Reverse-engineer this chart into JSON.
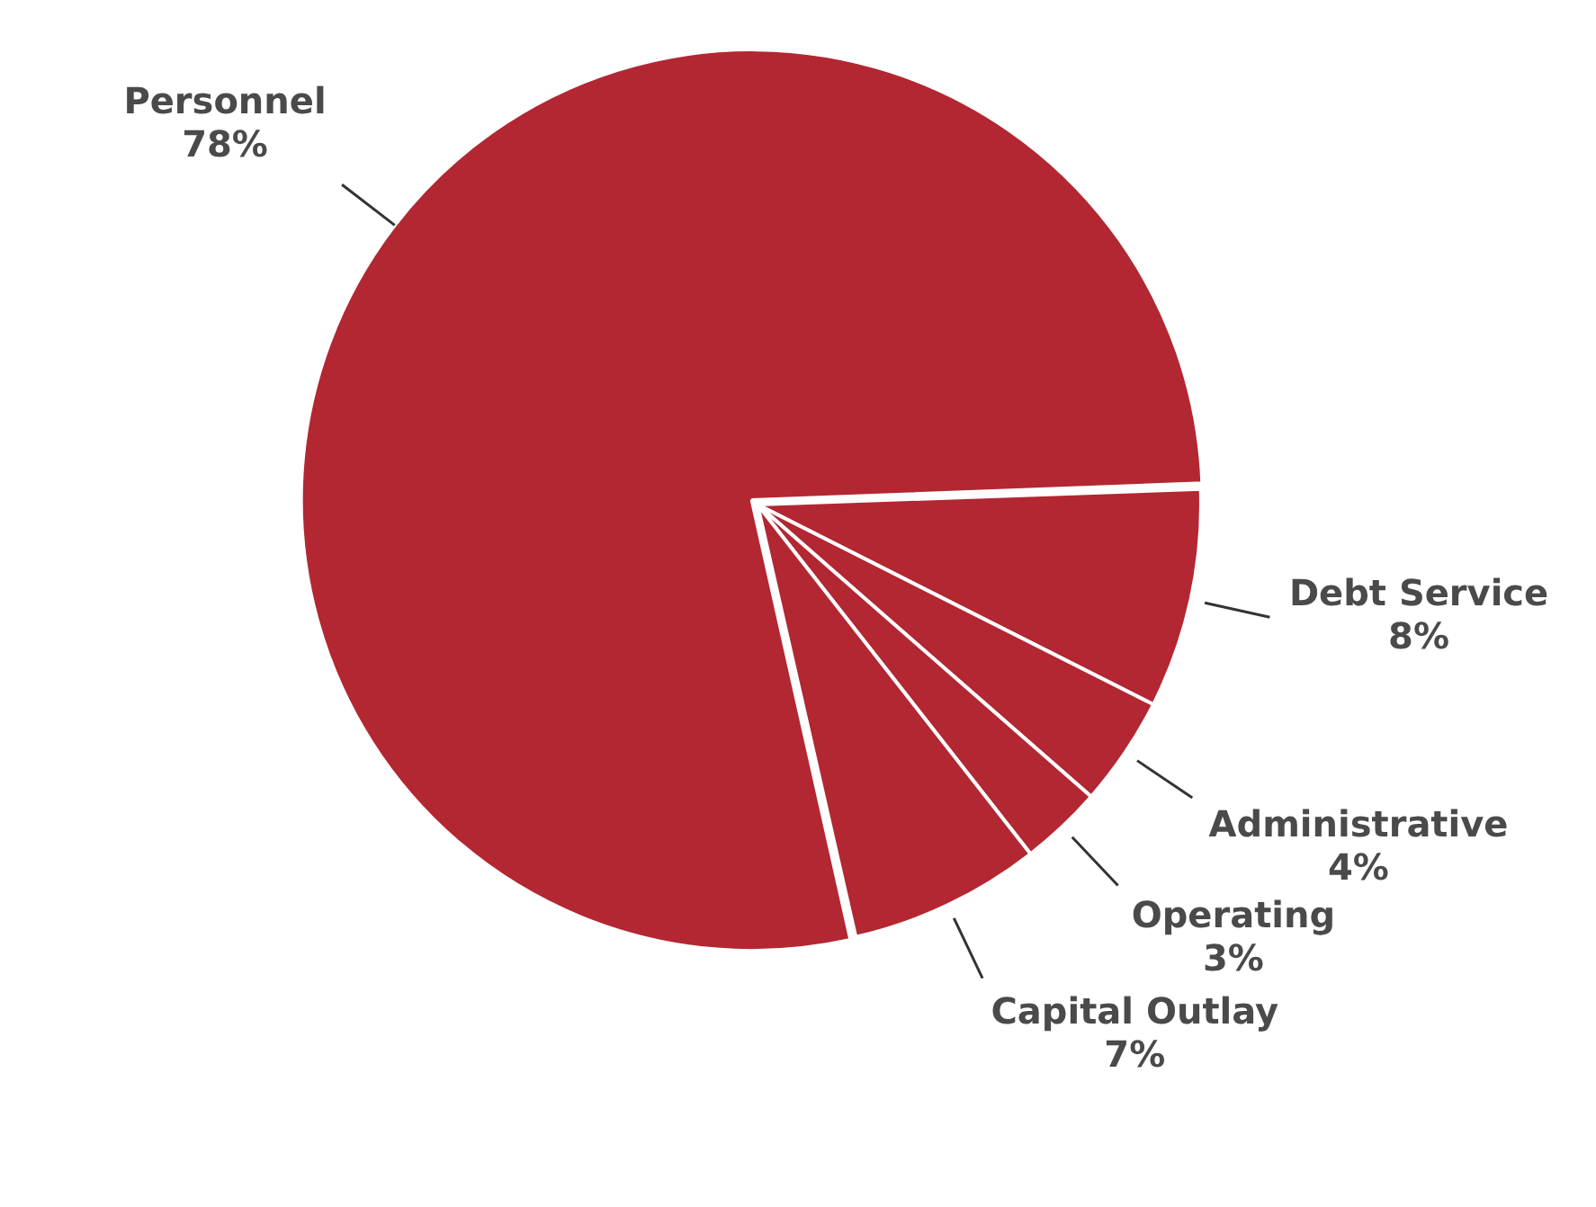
{
  "chart_data": {
    "type": "pie",
    "categories": [
      "Personnel",
      "Debt Service",
      "Administrative",
      "Operating",
      "Capital Outlay"
    ],
    "values": [
      78,
      8,
      4,
      3,
      7
    ],
    "colors": [
      "#b22732",
      "#b22732",
      "#b22732",
      "#b22732",
      "#b22732"
    ],
    "value_labels": [
      "78%",
      "8%",
      "4%",
      "3%",
      "7%"
    ],
    "legend": false
  }
}
